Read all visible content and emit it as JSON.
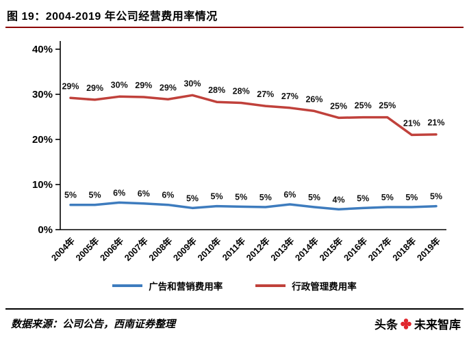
{
  "page": {
    "title": "图 19：2004-2019 年公司经营费用率情况"
  },
  "colors": {
    "title_underline": "#8B0000",
    "axis": "#000000",
    "advertising_line": "#3E7CBE",
    "admin_line": "#C0413B",
    "brand_logo": "#E0262D"
  },
  "chart_data": {
    "type": "line",
    "title": "图 19：2004-2019 年公司经营费用率情况",
    "categories": [
      "2004年",
      "2005年",
      "2006年",
      "2007年",
      "2008年",
      "2009年",
      "2010年",
      "2011年",
      "2012年",
      "2013年",
      "2014年",
      "2015年",
      "2016年",
      "2017年",
      "2018年",
      "2019年"
    ],
    "series": [
      {
        "name": "广告和营销费用率",
        "color": "#3E7CBE",
        "values": [
          5.5,
          5.5,
          6.0,
          5.8,
          5.5,
          4.8,
          5.2,
          5.1,
          5.0,
          5.6,
          5.0,
          4.5,
          4.8,
          5.0,
          5.0,
          5.2
        ],
        "labels": [
          "5%",
          "5%",
          "6%",
          "6%",
          "6%",
          "5%",
          "5%",
          "5%",
          "5%",
          "6%",
          "5%",
          "4%",
          "5%",
          "5%",
          "5%",
          "5%"
        ]
      },
      {
        "name": "行政管理费用率",
        "color": "#C0413B",
        "values": [
          29.2,
          28.8,
          29.5,
          29.4,
          28.9,
          29.8,
          28.3,
          28.1,
          27.4,
          27.0,
          26.3,
          24.8,
          24.9,
          24.9,
          21.0,
          21.1
        ],
        "labels": [
          "29%",
          "29%",
          "30%",
          "29%",
          "29%",
          "30%",
          "28%",
          "28%",
          "27%",
          "27%",
          "26%",
          "25%",
          "25%",
          "25%",
          "21%",
          "21%"
        ]
      }
    ],
    "xlabel": "",
    "ylabel": "",
    "ylim": [
      0,
      40
    ],
    "ytick_values": [
      0,
      10,
      20,
      30,
      40
    ],
    "yticks": [
      "0%",
      "10%",
      "20%",
      "30%",
      "40%"
    ],
    "grid": false,
    "legend_position": "bottom"
  },
  "footer": {
    "source": "数据来源：公司公告，西南证券整理",
    "brand_left": "头条",
    "brand_right": "未来智库",
    "brand_icon": "flower-logo"
  }
}
